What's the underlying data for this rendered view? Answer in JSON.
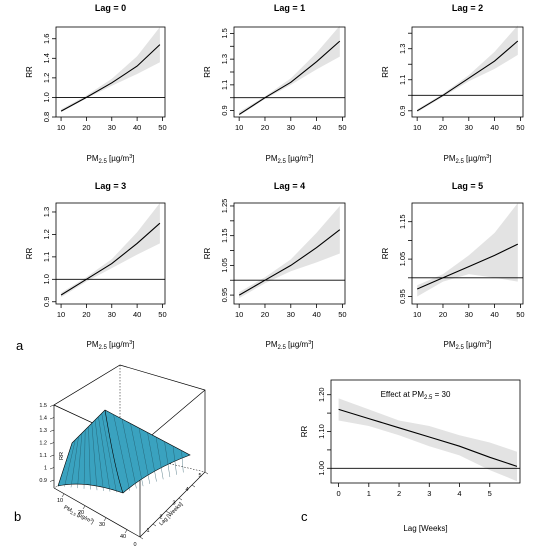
{
  "panels": {
    "a": "a",
    "b": "b",
    "c": "c"
  },
  "chart_data": [
    {
      "type": "line",
      "title": "Lag = 0",
      "ylabel": "RR",
      "xlabel_main": "PM",
      "xlabel_sub": "2.5",
      "xlabel_unit": " [µg/m",
      "xlabel_sup": "3",
      "xlabel_end": "]",
      "xlim": [
        8,
        51
      ],
      "ylim": [
        0.8,
        1.72
      ],
      "xticks": [
        10,
        20,
        30,
        40,
        50
      ],
      "yticks": [
        0.8,
        1.0,
        1.2,
        1.4,
        1.6
      ],
      "ytick_labels": [
        "0.8",
        "1.0",
        "1.2",
        "1.4",
        "1.6"
      ],
      "reference_line": 1.0,
      "series": [
        {
          "x": [
            10,
            20,
            30,
            40,
            49
          ],
          "values": [
            0.86,
            1.0,
            1.15,
            1.32,
            1.54
          ],
          "lower": [
            0.85,
            0.99,
            1.12,
            1.24,
            1.36
          ],
          "upper": [
            0.88,
            1.02,
            1.19,
            1.42,
            1.72
          ]
        }
      ]
    },
    {
      "type": "line",
      "title": "Lag =  1",
      "ylabel": "RR",
      "xlabel_main": "PM",
      "xlabel_sub": "2.5",
      "xlabel_unit": " [µg/m",
      "xlabel_sup": "3",
      "xlabel_end": "]",
      "xlim": [
        8,
        51
      ],
      "ylim": [
        0.85,
        1.55
      ],
      "xticks": [
        10,
        20,
        30,
        40,
        50
      ],
      "yticks": [
        0.9,
        1.1,
        1.3,
        1.5
      ],
      "ytick_labels": [
        "0.9",
        "1.1",
        "1.3",
        "1.5"
      ],
      "ytick_minor": [
        1.0,
        1.2,
        1.4
      ],
      "reference_line": 1.0,
      "series": [
        {
          "x": [
            10,
            20,
            30,
            40,
            49
          ],
          "values": [
            0.87,
            1.0,
            1.12,
            1.28,
            1.44
          ],
          "lower": [
            0.86,
            0.99,
            1.1,
            1.22,
            1.32
          ],
          "upper": [
            0.89,
            1.01,
            1.15,
            1.35,
            1.56
          ]
        }
      ]
    },
    {
      "type": "line",
      "title": "Lag =  2",
      "ylabel": "RR",
      "xlabel_main": "PM",
      "xlabel_sub": "2.5",
      "xlabel_unit": " [µg/m",
      "xlabel_sup": "3",
      "xlabel_end": "]",
      "xlim": [
        8,
        51
      ],
      "ylim": [
        0.86,
        1.44
      ],
      "xticks": [
        10,
        20,
        30,
        40,
        50
      ],
      "yticks": [
        0.9,
        1.1,
        1.3
      ],
      "ytick_labels": [
        "0.9",
        "1.1",
        "1.3"
      ],
      "ytick_minor": [
        1.0,
        1.2,
        1.4
      ],
      "reference_line": 1.0,
      "series": [
        {
          "x": [
            10,
            20,
            30,
            40,
            49
          ],
          "values": [
            0.9,
            1.0,
            1.11,
            1.22,
            1.35
          ],
          "lower": [
            0.89,
            0.99,
            1.09,
            1.17,
            1.26
          ],
          "upper": [
            0.91,
            1.01,
            1.13,
            1.28,
            1.45
          ]
        }
      ]
    },
    {
      "type": "line",
      "title": "Lag =  3",
      "ylabel": "RR",
      "xlabel_main": "PM",
      "xlabel_sub": "2.5",
      "xlabel_unit": " [µg/m",
      "xlabel_sup": "3",
      "xlabel_end": "]",
      "xlim": [
        8,
        51
      ],
      "ylim": [
        0.89,
        1.34
      ],
      "xticks": [
        10,
        20,
        30,
        40,
        50
      ],
      "yticks": [
        0.9,
        1.0,
        1.1,
        1.2,
        1.3
      ],
      "ytick_labels": [
        "0.9",
        "1.0",
        "1.1",
        "1.2",
        "1.3"
      ],
      "reference_line": 1.0,
      "series": [
        {
          "x": [
            10,
            20,
            30,
            40,
            49
          ],
          "values": [
            0.93,
            1.0,
            1.07,
            1.16,
            1.25
          ],
          "lower": [
            0.92,
            0.99,
            1.05,
            1.11,
            1.16
          ],
          "upper": [
            0.94,
            1.01,
            1.09,
            1.21,
            1.34
          ]
        }
      ]
    },
    {
      "type": "line",
      "title": "Lag =  4",
      "ylabel": "RR",
      "xlabel_main": "PM",
      "xlabel_sub": "2.5",
      "xlabel_unit": " [µg/m",
      "xlabel_sup": "3",
      "xlabel_end": "]",
      "xlim": [
        8,
        51
      ],
      "ylim": [
        0.92,
        1.26
      ],
      "xticks": [
        10,
        20,
        30,
        40,
        50
      ],
      "yticks": [
        0.95,
        1.05,
        1.15,
        1.25
      ],
      "ytick_labels": [
        "0.95",
        "1.05",
        "1.15",
        "1.25"
      ],
      "ytick_minor": [
        1.0,
        1.1,
        1.2
      ],
      "reference_line": 1.0,
      "series": [
        {
          "x": [
            10,
            20,
            30,
            40,
            49
          ],
          "values": [
            0.95,
            1.0,
            1.05,
            1.11,
            1.17
          ],
          "lower": [
            0.94,
            0.99,
            1.03,
            1.06,
            1.09
          ],
          "upper": [
            0.96,
            1.01,
            1.07,
            1.16,
            1.25
          ]
        }
      ]
    },
    {
      "type": "line",
      "title": "Lag =  5",
      "ylabel": "RR",
      "xlabel_main": "PM",
      "xlabel_sub": "2.5",
      "xlabel_unit": " [µg/m",
      "xlabel_sup": "3",
      "xlabel_end": "]",
      "xlim": [
        8,
        51
      ],
      "ylim": [
        0.93,
        1.2
      ],
      "xticks": [
        10,
        20,
        30,
        40,
        50
      ],
      "yticks": [
        0.95,
        1.05,
        1.15
      ],
      "ytick_labels": [
        "0.95",
        "1.05",
        "1.15"
      ],
      "ytick_minor": [
        1.0,
        1.1
      ],
      "reference_line": 1.0,
      "series": [
        {
          "x": [
            10,
            20,
            30,
            40,
            49
          ],
          "values": [
            0.97,
            1.0,
            1.03,
            1.06,
            1.09
          ],
          "lower": [
            0.95,
            0.99,
            1.01,
            1.0,
            0.99
          ],
          "upper": [
            0.98,
            1.01,
            1.06,
            1.12,
            1.2
          ]
        }
      ]
    },
    {
      "type": "surface",
      "zlabel": "RR",
      "xlabel_main": "PM",
      "xlabel_sub": "2.5",
      "xlabel_unit": " [µg/m",
      "xlabel_sup": "3",
      "xlabel_end": "]",
      "ylabel": "Lag [Weeks]",
      "zticks": [
        "0.9",
        "1",
        "1.1",
        "1.2",
        "1.3",
        "1.4",
        "1.5"
      ],
      "xticks": [
        "10",
        "20",
        "30",
        "40"
      ],
      "yticks": [
        "0",
        "1",
        "2",
        "3",
        "4",
        "5"
      ],
      "surface_color": "#3aa2bf"
    },
    {
      "type": "line",
      "title": "Effect at PM",
      "title_sub": "2.5",
      "title_end": " = 30",
      "ylabel": "RR",
      "xlabel": "Lag [Weeks]",
      "xlim": [
        -0.25,
        6.0
      ],
      "ylim": [
        0.96,
        1.24
      ],
      "xticks": [
        0,
        1,
        2,
        3,
        4,
        5
      ],
      "xtick_labels": [
        "0",
        "1",
        "2",
        "3",
        "4",
        "5"
      ],
      "yticks": [
        1.0,
        1.1,
        1.2
      ],
      "ytick_labels": [
        "1.00",
        "1.10",
        "1.20"
      ],
      "ytick_minor": [
        1.05,
        1.15
      ],
      "reference_line": 1.0,
      "series": [
        {
          "x": [
            0,
            1,
            2,
            3,
            4,
            5,
            5.9
          ],
          "values": [
            1.16,
            1.135,
            1.11,
            1.085,
            1.06,
            1.03,
            1.005
          ],
          "lower": [
            1.13,
            1.115,
            1.09,
            1.06,
            1.035,
            0.995,
            0.965
          ],
          "upper": [
            1.19,
            1.16,
            1.13,
            1.115,
            1.09,
            1.07,
            1.045
          ]
        }
      ]
    }
  ]
}
